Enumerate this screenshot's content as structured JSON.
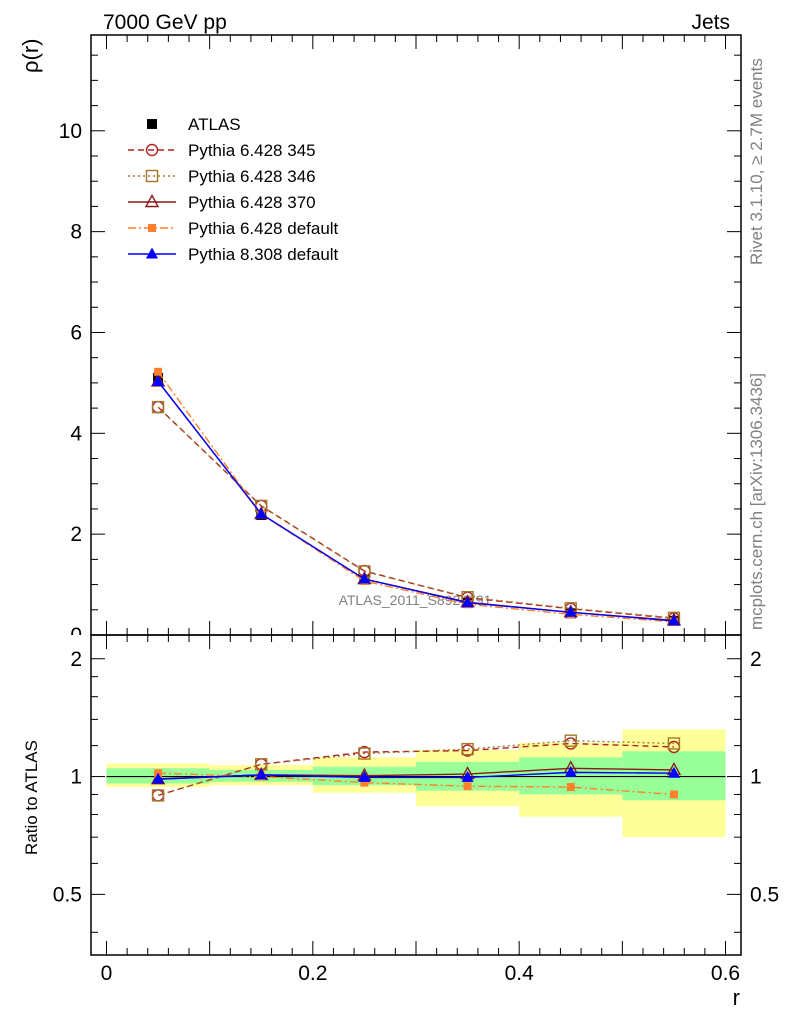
{
  "header": {
    "left_title": "7000 GeV pp",
    "right_title": "Jets"
  },
  "side_labels": {
    "rivet": "Rivet 3.1.10, ≥ 2.7M events",
    "mcplots": "mcplots.cern.ch [arXiv:1306.3436]"
  },
  "watermark": "ATLAS_2011_S8924791",
  "chart_data": {
    "type": "line",
    "xlabel": "r",
    "ylabel": "ρ(r)",
    "ratio_ylabel": "Ratio to ATLAS",
    "xlim": [
      -0.015,
      0.615
    ],
    "ylim": [
      0,
      11.9
    ],
    "ratio_ylim": [
      0.35,
      2.3
    ],
    "x_ticks": [
      0,
      0.2,
      0.4,
      0.6
    ],
    "x_tick_labels": [
      "0",
      "0.2",
      "0.4",
      "0.6"
    ],
    "y_ticks": [
      0,
      2,
      4,
      6,
      8,
      10
    ],
    "y_tick_labels": [
      "0",
      "2",
      "4",
      "6",
      "8",
      "10"
    ],
    "ratio_y_ticks": [
      0.5,
      1,
      2
    ],
    "ratio_y_tick_labels": [
      "0.5",
      "1",
      "2"
    ],
    "bins": [
      [
        0.0,
        0.1
      ],
      [
        0.1,
        0.2
      ],
      [
        0.2,
        0.3
      ],
      [
        0.3,
        0.4
      ],
      [
        0.4,
        0.5
      ],
      [
        0.5,
        0.6
      ]
    ],
    "x": [
      0.05,
      0.15,
      0.25,
      0.35,
      0.45,
      0.55
    ],
    "data": {
      "name": "ATLAS",
      "values": [
        5.1,
        2.38,
        1.1,
        0.64,
        0.43,
        0.28
      ],
      "ratio_band_stat": [
        [
          0.96,
          1.05
        ],
        [
          0.97,
          1.04
        ],
        [
          0.95,
          1.06
        ],
        [
          0.92,
          1.09
        ],
        [
          0.9,
          1.12
        ],
        [
          0.87,
          1.16
        ]
      ],
      "ratio_band_total": [
        [
          0.94,
          1.08
        ],
        [
          0.95,
          1.07
        ],
        [
          0.91,
          1.12
        ],
        [
          0.84,
          1.17
        ],
        [
          0.79,
          1.22
        ],
        [
          0.7,
          1.32
        ]
      ]
    },
    "series": [
      {
        "name": "Pythia 6.428 345",
        "color": "#b22222",
        "marker": "open-circle",
        "dash": "6,4",
        "values": [
          4.52,
          2.56,
          1.27,
          0.74,
          0.52,
          0.33
        ],
        "ratio": [
          0.895,
          1.075,
          1.155,
          1.165,
          1.215,
          1.19
        ]
      },
      {
        "name": "Pythia 6.428 346",
        "color": "#a0782a",
        "marker": "open-square",
        "dash": "2,3",
        "values": [
          4.52,
          2.56,
          1.26,
          0.75,
          0.53,
          0.34
        ],
        "ratio": [
          0.895,
          1.075,
          1.145,
          1.175,
          1.235,
          1.215
        ]
      },
      {
        "name": "Pythia 6.428 370",
        "color": "#8b1a1a",
        "marker": "open-triangle",
        "dash": "",
        "values": [
          5.03,
          2.4,
          1.11,
          0.65,
          0.45,
          0.29
        ],
        "ratio": [
          0.985,
          1.01,
          1.005,
          1.015,
          1.05,
          1.04
        ]
      },
      {
        "name": "Pythia 6.428 default",
        "color": "#ff7f2a",
        "marker": "filled-square",
        "dash": "8,3,2,3",
        "values": [
          5.22,
          2.4,
          1.07,
          0.61,
          0.41,
          0.26
        ],
        "ratio": [
          1.02,
          1.0,
          0.965,
          0.945,
          0.94,
          0.9
        ]
      },
      {
        "name": "Pythia 8.308 default",
        "color": "#0000ff",
        "marker": "filled-triangle",
        "dash": "",
        "values": [
          5.03,
          2.4,
          1.11,
          0.64,
          0.45,
          0.28
        ],
        "ratio": [
          0.985,
          1.01,
          0.995,
          0.995,
          1.025,
          1.02
        ]
      }
    ]
  }
}
